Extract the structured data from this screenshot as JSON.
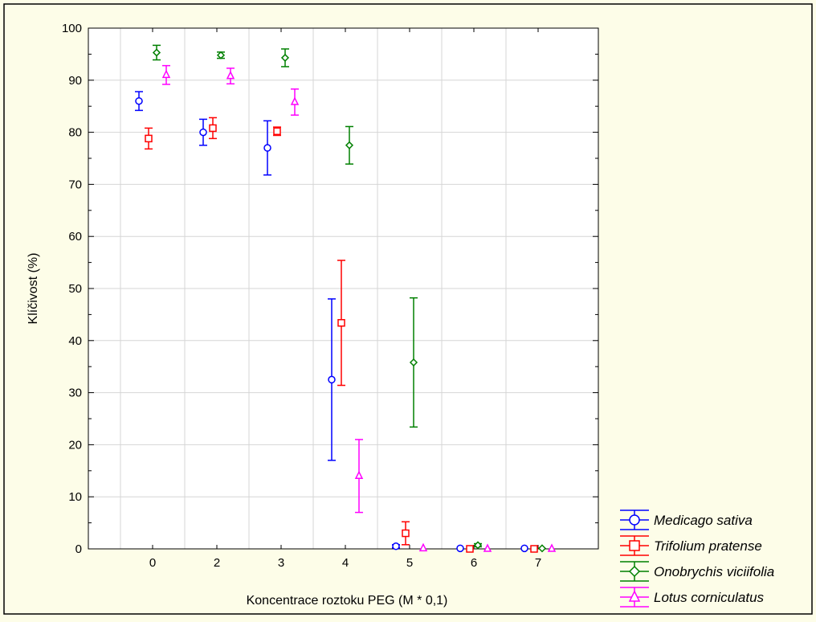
{
  "chart_data": {
    "type": "scatter",
    "xlabel": "Koncentrace roztoku PEG (M * 0,1)",
    "ylabel": "Klíčivost (%)",
    "ylim": [
      0,
      100
    ],
    "grid": true,
    "legend_position": "bottom-right",
    "categories": [
      "0",
      "2",
      "3",
      "4",
      "5",
      "6",
      "7"
    ],
    "yticks": [
      0,
      10,
      20,
      30,
      40,
      50,
      60,
      70,
      80,
      90,
      100
    ],
    "series": [
      {
        "name": "Medicago sativa",
        "color": "#0000FF",
        "marker": "circle",
        "values": [
          86,
          80,
          77,
          32.5,
          0.5,
          0.1,
          0.1
        ],
        "errors": [
          1.8,
          2.5,
          5.2,
          15.5,
          0.3,
          0,
          0
        ]
      },
      {
        "name": "Trifolium pratense",
        "color": "#FF0000",
        "marker": "square",
        "values": [
          78.8,
          80.8,
          80.2,
          43.4,
          3,
          0,
          0
        ],
        "errors": [
          2,
          2,
          0.8,
          12,
          2.2,
          0,
          0
        ]
      },
      {
        "name": "Onobrychis viciifolia",
        "color": "#008000",
        "marker": "diamond",
        "values": [
          95.3,
          94.8,
          94.3,
          77.5,
          35.8,
          0.7,
          0.1
        ],
        "errors": [
          1.4,
          0.6,
          1.7,
          3.6,
          12.4,
          0.3,
          0
        ]
      },
      {
        "name": "Lotus corniculatus",
        "color": "#FF00FF",
        "marker": "triangle",
        "values": [
          91,
          90.8,
          85.8,
          14,
          0.1,
          0,
          0
        ],
        "errors": [
          1.8,
          1.5,
          2.5,
          7,
          0,
          0,
          0
        ]
      }
    ]
  }
}
